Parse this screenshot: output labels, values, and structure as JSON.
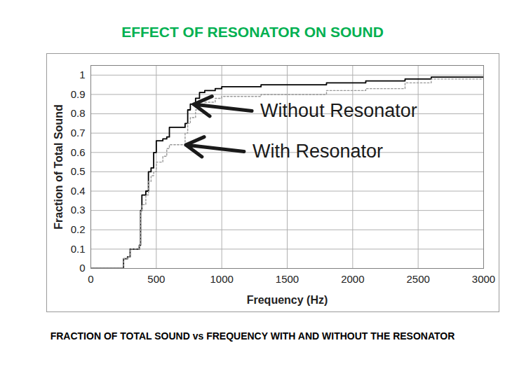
{
  "chart_data": {
    "type": "line",
    "title": "EFFECT OF RESONATOR ON SOUND",
    "caption": "FRACTION OF TOTAL SOUND vs FREQUENCY WITH AND WITHOUT THE RESONATOR",
    "x_label": "Frequency (Hz)",
    "y_label": "Fraction of Total Sound",
    "x": [
      0,
      230,
      250,
      280,
      300,
      360,
      370,
      380,
      390,
      420,
      440,
      460,
      480,
      500,
      550,
      580,
      600,
      700,
      720,
      740,
      760,
      800,
      830,
      870,
      950,
      1000,
      1300,
      1800,
      2100,
      2400,
      2600,
      3000
    ],
    "series": [
      {
        "name": "Without Resonator",
        "color": "#000000",
        "line_style": "solid",
        "values": [
          0,
          0,
          0.05,
          0.06,
          0.1,
          0.1,
          0.12,
          0.3,
          0.38,
          0.4,
          0.5,
          0.52,
          0.6,
          0.66,
          0.67,
          0.68,
          0.73,
          0.73,
          0.75,
          0.82,
          0.85,
          0.88,
          0.91,
          0.92,
          0.93,
          0.94,
          0.95,
          0.96,
          0.97,
          0.98,
          0.99,
          0.99
        ]
      },
      {
        "name": "With Resonator",
        "color": "#999999",
        "line_style": "dotted",
        "values": [
          0,
          0,
          0.05,
          0.06,
          0.1,
          0.1,
          0.12,
          0.3,
          0.33,
          0.38,
          0.45,
          0.48,
          0.5,
          0.55,
          0.58,
          0.62,
          0.64,
          0.64,
          0.7,
          0.75,
          0.78,
          0.82,
          0.85,
          0.86,
          0.88,
          0.89,
          0.9,
          0.92,
          0.93,
          0.96,
          0.98,
          0.99
        ]
      }
    ],
    "xlim": [
      0,
      3000
    ],
    "xticks": [
      0,
      500,
      1000,
      1500,
      2000,
      2500,
      3000
    ],
    "ylim": [
      0,
      1.05
    ],
    "yticks": [
      0,
      0.1,
      0.2,
      0.3,
      0.4,
      0.5,
      0.6,
      0.7,
      0.8,
      0.9,
      1
    ],
    "grid": true
  }
}
